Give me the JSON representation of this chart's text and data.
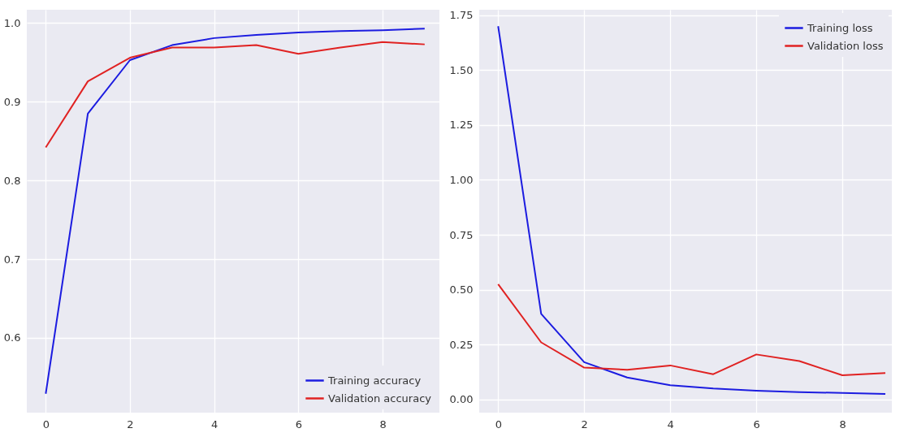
{
  "chart_data": [
    {
      "type": "line",
      "x": [
        0,
        1,
        2,
        3,
        4,
        5,
        6,
        7,
        8,
        9
      ],
      "xlim": [
        -0.45,
        9.35
      ],
      "xticks": [
        0,
        2,
        4,
        6,
        8
      ],
      "ylim": [
        0.505,
        1.017
      ],
      "yticks": [
        0.6,
        0.7,
        0.8,
        0.9,
        {
          "value": 1.0,
          "label": "1.0"
        }
      ],
      "grid": true,
      "legend": "bottom right",
      "series": [
        {
          "name": "Training accuracy",
          "color": "#1c1ce0",
          "values": [
            0.529,
            0.885,
            0.953,
            0.972,
            0.981,
            0.985,
            0.988,
            0.99,
            0.991,
            0.993
          ]
        },
        {
          "name": "Validation accuracy",
          "color": "#e02222",
          "values": [
            0.842,
            0.926,
            0.956,
            0.969,
            0.969,
            0.972,
            0.961,
            0.969,
            0.976,
            0.973
          ]
        }
      ]
    },
    {
      "type": "line",
      "x": [
        0,
        1,
        2,
        3,
        4,
        5,
        6,
        7,
        8,
        9
      ],
      "xlim": [
        -0.44,
        9.15
      ],
      "xticks": [
        0,
        2,
        4,
        6,
        8
      ],
      "ylim": [
        -0.06,
        1.775
      ],
      "yticks": [
        {
          "value": 0,
          "label": "0.00"
        },
        {
          "value": 0.25,
          "label": "0.25"
        },
        {
          "value": 0.5,
          "label": "0.50"
        },
        {
          "value": 0.75,
          "label": "0.75"
        },
        {
          "value": 1,
          "label": "1.00"
        },
        {
          "value": 1.25,
          "label": "1.25"
        },
        {
          "value": 1.5,
          "label": "1.50"
        },
        {
          "value": 1.75,
          "label": "1.75"
        }
      ],
      "grid": true,
      "legend": "top right",
      "series": [
        {
          "name": "Training loss",
          "color": "#1c1ce0",
          "values": [
            1.7,
            0.39,
            0.17,
            0.1,
            0.065,
            0.05,
            0.04,
            0.033,
            0.03,
            0.025
          ]
        },
        {
          "name": "Validation loss",
          "color": "#e02222",
          "values": [
            0.525,
            0.26,
            0.145,
            0.135,
            0.155,
            0.115,
            0.205,
            0.175,
            0.11,
            0.12
          ]
        }
      ]
    }
  ]
}
